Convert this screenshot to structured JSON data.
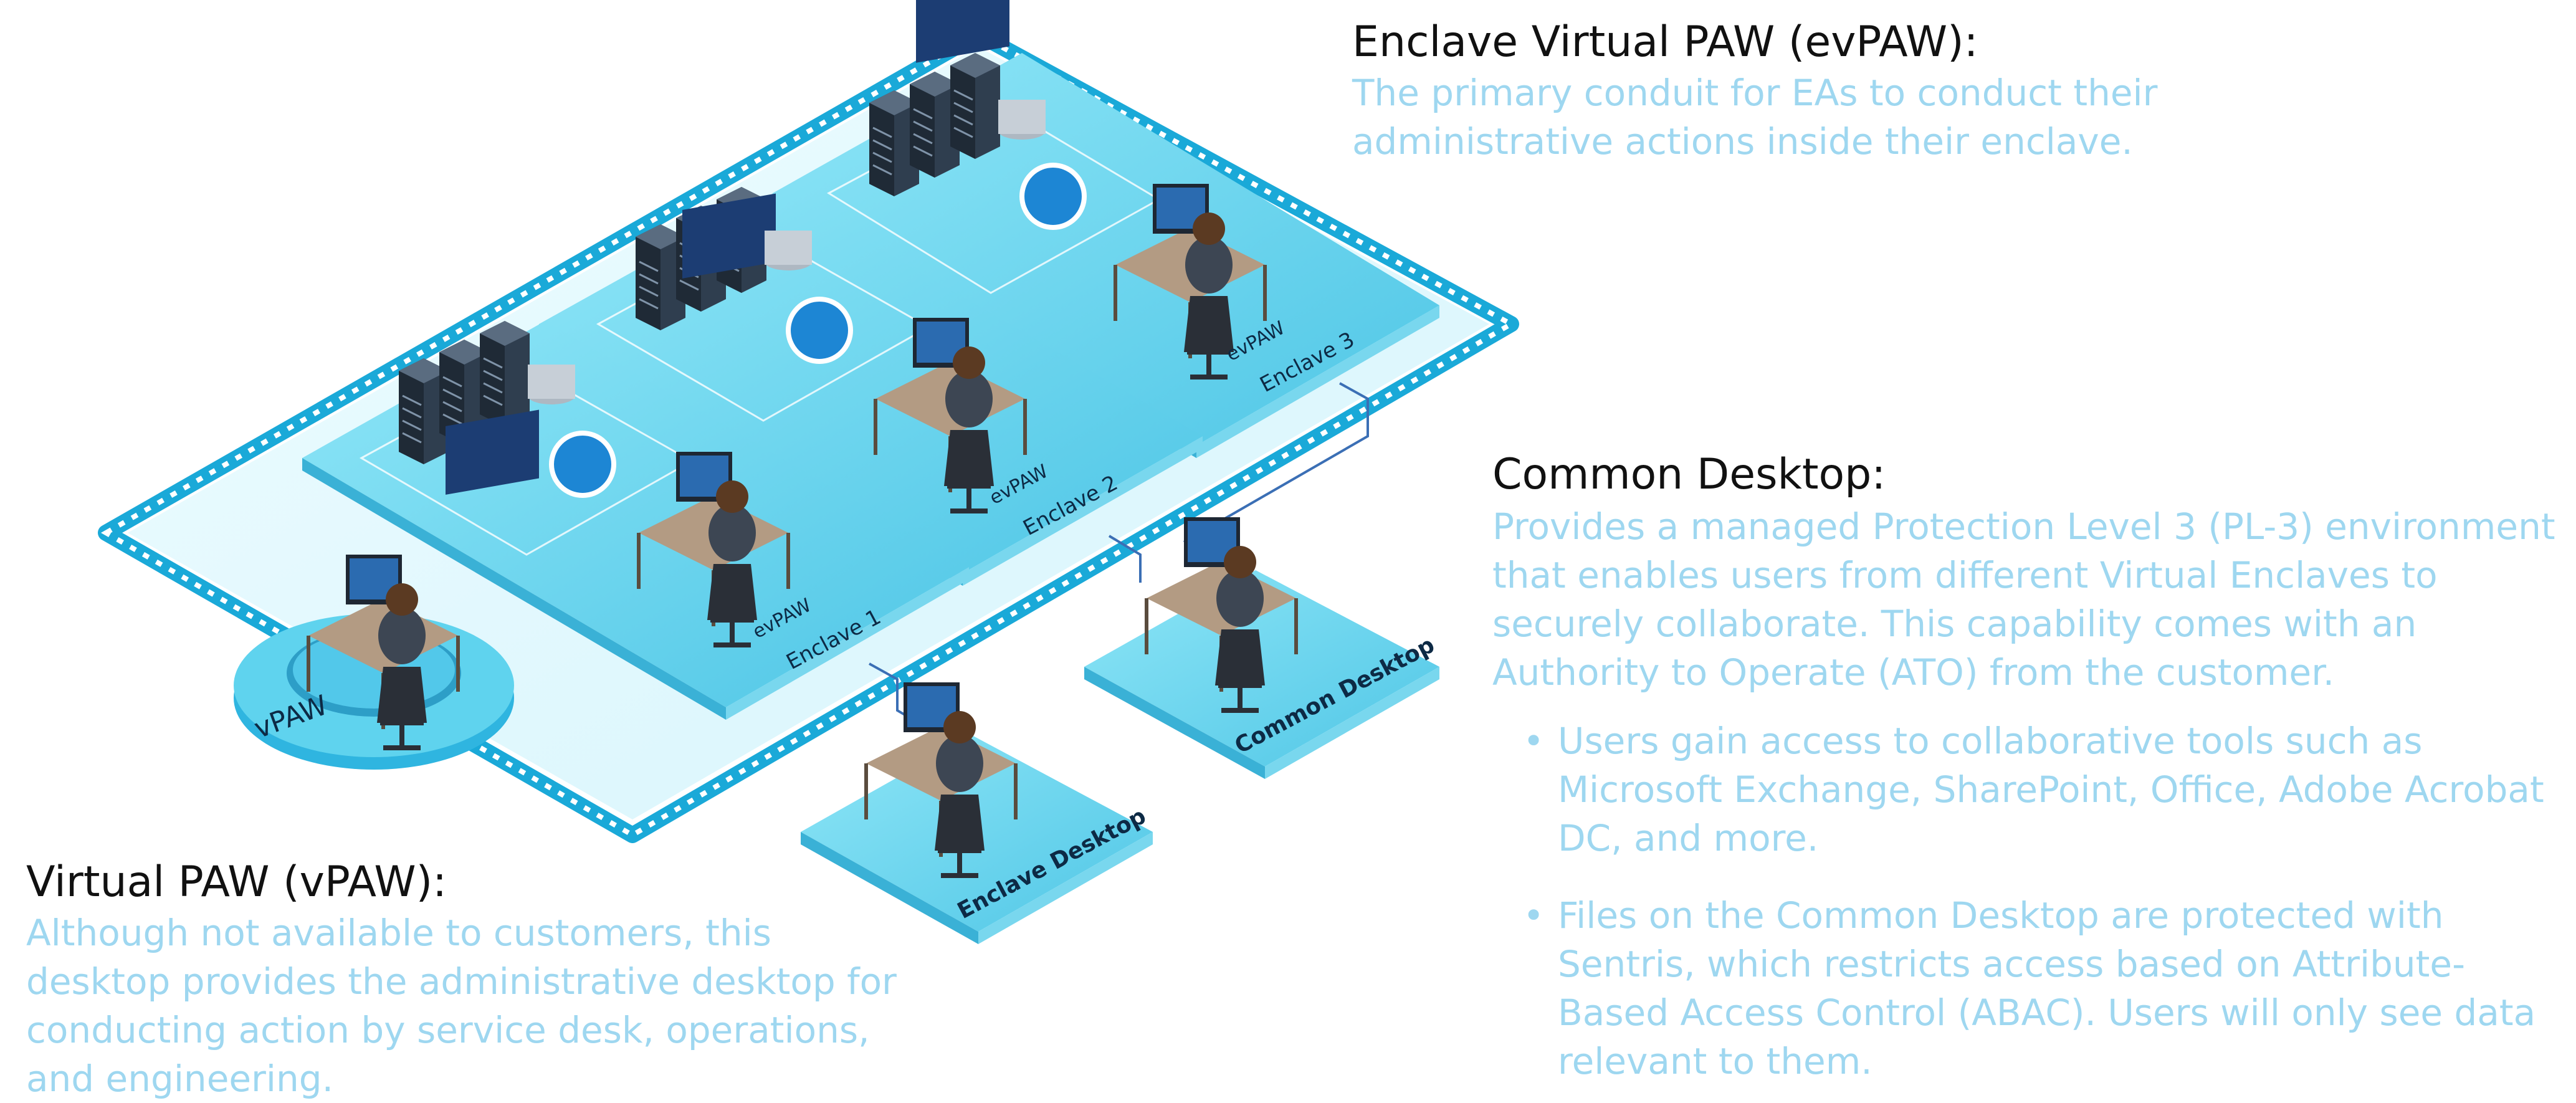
{
  "enclave_virtual_paw": {
    "title": "Enclave Virtual PAW (evPAW):",
    "description": "The primary conduit for EAs to conduct their administrative actions inside their enclave."
  },
  "common_desktop": {
    "title": "Common Desktop:",
    "description": "Provides a managed Protection Level 3 (PL-3) environment that enables users from different Virtual Enclaves to securely collaborate. This capability comes with an Authority to Operate (ATO) from the customer.",
    "bullets": [
      "Users gain access to collaborative tools such as Microsoft Exchange, SharePoint, Office, Adobe Acrobat DC, and more.",
      "Files on the Common Desktop are protected with Sentris, which restricts access based on Attribute-Based Access Control (ABAC). Users will only see data relevant to them."
    ]
  },
  "virtual_paw": {
    "title": "Virtual PAW (vPAW):",
    "description": "Although not available to customers, this desktop provides the administrative desktop for conducting action by service desk, operations, and engineering."
  },
  "diagram": {
    "enclaves": [
      {
        "name": "Enclave 1",
        "paw_label": "evPAW"
      },
      {
        "name": "Enclave 2",
        "paw_label": "evPAW"
      },
      {
        "name": "Enclave 3",
        "paw_label": "evPAW"
      }
    ],
    "vpaw_label": "vPAW",
    "common_desktop_label": "Common Desktop",
    "enclave_desktop_label": "Enclave Desktop"
  },
  "colors": {
    "platform": "#5fd3ee",
    "platform_light": "#bdeefa",
    "border_dots": "#1aa9d8",
    "title_text": "#111111",
    "description_text": "#9ed7f0"
  }
}
